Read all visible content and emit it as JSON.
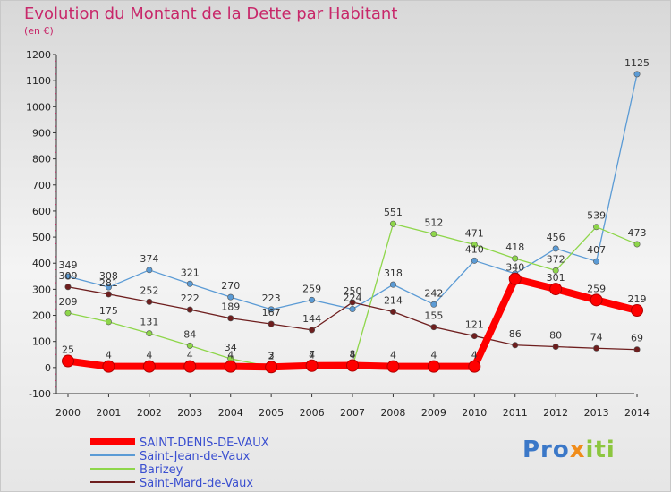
{
  "chart_data": {
    "type": "line",
    "title": "Evolution du Montant de la Dette par Habitant",
    "subtitle": "(en €)",
    "x": [
      "2000",
      "2001",
      "2002",
      "2003",
      "2004",
      "2005",
      "2006",
      "2007",
      "2008",
      "2009",
      "2010",
      "2011",
      "2012",
      "2013",
      "2014"
    ],
    "y_ticks": [
      -100,
      0,
      100,
      200,
      300,
      400,
      500,
      600,
      700,
      800,
      900,
      1000,
      1100,
      1200
    ],
    "ylim": [
      -100,
      1200
    ],
    "grid": false,
    "legend_position": "bottom-left",
    "series": [
      {
        "name": "SAINT-DENIS-DE-VAUX",
        "color": "#ff0000",
        "values": [
          25,
          4,
          4,
          4,
          4,
          2,
          7,
          8,
          4,
          4,
          4,
          340,
          301,
          259,
          219
        ]
      },
      {
        "name": "Saint-Jean-de-Vaux",
        "color": "#5b9bd5",
        "values": [
          349,
          308,
          374,
          321,
          270,
          223,
          259,
          224,
          318,
          242,
          410,
          360,
          456,
          407,
          1125
        ]
      },
      {
        "name": "Barizey",
        "color": "#8ed64a",
        "values": [
          209,
          175,
          131,
          84,
          34,
          3,
          4,
          4,
          551,
          512,
          471,
          418,
          372,
          539,
          473
        ]
      },
      {
        "name": "Saint-Mard-de-Vaux",
        "color": "#6e1e1e",
        "values": [
          309,
          281,
          252,
          222,
          189,
          167,
          144,
          250,
          214,
          155,
          121,
          86,
          80,
          74,
          69
        ]
      }
    ],
    "point_labels": [
      [
        "25",
        "4",
        "4",
        "4",
        "4",
        "2",
        "7",
        "8",
        "4",
        "4",
        "4",
        "340",
        "301",
        "259",
        "219"
      ],
      [
        "349",
        "308",
        "374",
        "321",
        "270",
        "223",
        "259",
        "224",
        "318",
        "242",
        "410",
        "",
        "456",
        "407",
        "1125"
      ],
      [
        "209",
        "175",
        "131",
        "84",
        "34",
        "3",
        "4",
        "4",
        "551",
        "512",
        "471",
        "418",
        "372",
        "539",
        "473"
      ],
      [
        "309",
        "281",
        "252",
        "222",
        "189",
        "167",
        "144",
        "250",
        "214",
        "155",
        "121",
        "86",
        "80",
        "74",
        "69"
      ]
    ]
  },
  "logo_text": "Proxiti"
}
